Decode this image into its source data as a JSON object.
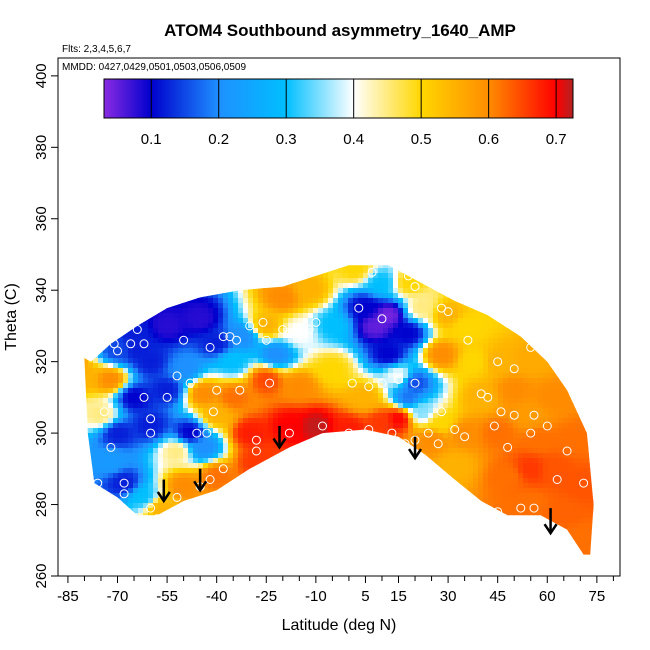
{
  "chart_data": {
    "type": "heatmap",
    "title": "ATOM4 Southbound asymmetry_1640_AMP",
    "annotations": {
      "flights": "Flts: 2,3,4,5,6,7",
      "dates": "MMDD: 0427,0429,0501,0503,0506,0509"
    },
    "xlabel": "Latitude (deg N)",
    "ylabel": "Theta (C)",
    "xlim": [
      -88,
      82
    ],
    "ylim": [
      260,
      405
    ],
    "x_ticks": [
      -85,
      -70,
      -55,
      -40,
      -25,
      -10,
      5,
      15,
      30,
      45,
      60,
      75
    ],
    "x_tick_labels": [
      "-85",
      "-70",
      "-55",
      "-40",
      "-25",
      "-10",
      "5",
      "15",
      "30",
      "45",
      "60",
      "75"
    ],
    "y_ticks": [
      260,
      280,
      300,
      320,
      340,
      360,
      380,
      400
    ],
    "y_tick_labels": [
      "260",
      "280",
      "300",
      "320",
      "340",
      "360",
      "380",
      "400"
    ],
    "colorbar": {
      "range": [
        0.03,
        0.725
      ],
      "ticks": [
        0.1,
        0.2,
        0.3,
        0.4,
        0.5,
        0.6,
        0.7
      ],
      "tick_labels": [
        "0.1",
        "0.2",
        "0.3",
        "0.4",
        "0.5",
        "0.6",
        "0.7"
      ],
      "bounds": [
        0.03,
        0.1,
        0.2,
        0.3,
        0.4,
        0.5,
        0.6,
        0.7,
        0.725
      ],
      "colors": [
        "#8a2be2",
        "#0000cd",
        "#1e90ff",
        "#00bfff",
        "#ffffff",
        "#ffd700",
        "#ff8c00",
        "#ff0000",
        "#b22222"
      ]
    },
    "field_extent": {
      "top": [
        [
          -78,
          320
        ],
        [
          -72,
          325
        ],
        [
          -64,
          330
        ],
        [
          -55,
          335
        ],
        [
          -45,
          338
        ],
        [
          -33,
          340
        ],
        [
          -20,
          341
        ],
        [
          -10,
          344
        ],
        [
          0,
          347
        ],
        [
          12,
          347
        ],
        [
          22,
          342
        ],
        [
          32,
          337
        ],
        [
          42,
          333
        ],
        [
          52,
          327
        ],
        [
          60,
          320
        ],
        [
          66,
          312
        ],
        [
          72,
          300
        ],
        [
          74,
          280
        ],
        [
          73,
          266
        ]
      ],
      "bottom": [
        [
          -80,
          321
        ],
        [
          -79,
          300
        ],
        [
          -77,
          286
        ],
        [
          -70,
          282
        ],
        [
          -64,
          277
        ],
        [
          -58,
          277
        ],
        [
          -50,
          281
        ],
        [
          -40,
          284
        ],
        [
          -30,
          290
        ],
        [
          -18,
          296
        ],
        [
          -8,
          300
        ],
        [
          5,
          301
        ],
        [
          15,
          299
        ],
        [
          23,
          294
        ],
        [
          32,
          287
        ],
        [
          40,
          281
        ],
        [
          48,
          277
        ],
        [
          58,
          277
        ],
        [
          66,
          273
        ],
        [
          71,
          266
        ]
      ]
    },
    "samples": [
      {
        "x": -85,
        "y": 320,
        "v": 0.62
      },
      {
        "x": -80,
        "y": 316,
        "v": 0.55
      },
      {
        "x": -72,
        "y": 315,
        "v": 0.6
      },
      {
        "x": -75,
        "y": 305,
        "v": 0.45
      },
      {
        "x": -70,
        "y": 323,
        "v": 0.15
      },
      {
        "x": -65,
        "y": 328,
        "v": 0.12
      },
      {
        "x": -64,
        "y": 323,
        "v": 0.12
      },
      {
        "x": -60,
        "y": 320,
        "v": 0.12
      },
      {
        "x": -55,
        "y": 330,
        "v": 0.08
      },
      {
        "x": -45,
        "y": 332,
        "v": 0.08
      },
      {
        "x": -40,
        "y": 325,
        "v": 0.12
      },
      {
        "x": -32,
        "y": 327,
        "v": 0.2
      },
      {
        "x": -25,
        "y": 330,
        "v": 0.55
      },
      {
        "x": -20,
        "y": 338,
        "v": 0.6
      },
      {
        "x": -12,
        "y": 340,
        "v": 0.55
      },
      {
        "x": -15,
        "y": 328,
        "v": 0.4
      },
      {
        "x": -22,
        "y": 322,
        "v": 0.2
      },
      {
        "x": -35,
        "y": 320,
        "v": 0.3
      },
      {
        "x": -50,
        "y": 318,
        "v": 0.2
      },
      {
        "x": -55,
        "y": 312,
        "v": 0.12
      },
      {
        "x": -65,
        "y": 310,
        "v": 0.1
      },
      {
        "x": -60,
        "y": 302,
        "v": 0.12
      },
      {
        "x": -70,
        "y": 300,
        "v": 0.12
      },
      {
        "x": -72,
        "y": 292,
        "v": 0.22
      },
      {
        "x": -68,
        "y": 286,
        "v": 0.12
      },
      {
        "x": -62,
        "y": 282,
        "v": 0.3
      },
      {
        "x": -57,
        "y": 279,
        "v": 0.55
      },
      {
        "x": -50,
        "y": 285,
        "v": 0.6
      },
      {
        "x": -52,
        "y": 295,
        "v": 0.45
      },
      {
        "x": -48,
        "y": 300,
        "v": 0.1
      },
      {
        "x": -44,
        "y": 296,
        "v": 0.2
      },
      {
        "x": -40,
        "y": 305,
        "v": 0.55
      },
      {
        "x": -44,
        "y": 311,
        "v": 0.6
      },
      {
        "x": -35,
        "y": 310,
        "v": 0.62
      },
      {
        "x": -25,
        "y": 315,
        "v": 0.65
      },
      {
        "x": -15,
        "y": 313,
        "v": 0.6
      },
      {
        "x": -30,
        "y": 300,
        "v": 0.68
      },
      {
        "x": -18,
        "y": 302,
        "v": 0.7
      },
      {
        "x": -28,
        "y": 292,
        "v": 0.66
      },
      {
        "x": -40,
        "y": 288,
        "v": 0.62
      },
      {
        "x": -10,
        "y": 302,
        "v": 0.72
      },
      {
        "x": 0,
        "y": 301,
        "v": 0.68
      },
      {
        "x": 10,
        "y": 303,
        "v": 0.66
      },
      {
        "x": 5,
        "y": 310,
        "v": 0.55
      },
      {
        "x": -5,
        "y": 318,
        "v": 0.5
      },
      {
        "x": -5,
        "y": 330,
        "v": 0.3
      },
      {
        "x": 5,
        "y": 335,
        "v": 0.1
      },
      {
        "x": 8,
        "y": 330,
        "v": 0.05
      },
      {
        "x": 12,
        "y": 333,
        "v": 0.04
      },
      {
        "x": 10,
        "y": 342,
        "v": 0.3
      },
      {
        "x": 2,
        "y": 346,
        "v": 0.5
      },
      {
        "x": 18,
        "y": 342,
        "v": 0.5
      },
      {
        "x": 22,
        "y": 335,
        "v": 0.45
      },
      {
        "x": 18,
        "y": 328,
        "v": 0.1
      },
      {
        "x": 12,
        "y": 322,
        "v": 0.1
      },
      {
        "x": 15,
        "y": 316,
        "v": 0.4
      },
      {
        "x": 18,
        "y": 310,
        "v": 0.18
      },
      {
        "x": 20,
        "y": 314,
        "v": 0.15
      },
      {
        "x": 22,
        "y": 306,
        "v": 0.35
      },
      {
        "x": 15,
        "y": 304,
        "v": 0.7
      },
      {
        "x": 25,
        "y": 298,
        "v": 0.6
      },
      {
        "x": 28,
        "y": 303,
        "v": 0.5
      },
      {
        "x": 28,
        "y": 322,
        "v": 0.6
      },
      {
        "x": 30,
        "y": 333,
        "v": 0.55
      },
      {
        "x": 35,
        "y": 330,
        "v": 0.5
      },
      {
        "x": 38,
        "y": 320,
        "v": 0.5
      },
      {
        "x": 40,
        "y": 310,
        "v": 0.55
      },
      {
        "x": 35,
        "y": 300,
        "v": 0.6
      },
      {
        "x": 32,
        "y": 291,
        "v": 0.55
      },
      {
        "x": 45,
        "y": 320,
        "v": 0.55
      },
      {
        "x": 50,
        "y": 312,
        "v": 0.6
      },
      {
        "x": 45,
        "y": 300,
        "v": 0.62
      },
      {
        "x": 48,
        "y": 288,
        "v": 0.62
      },
      {
        "x": 55,
        "y": 305,
        "v": 0.58
      },
      {
        "x": 58,
        "y": 298,
        "v": 0.62
      },
      {
        "x": 55,
        "y": 290,
        "v": 0.66
      },
      {
        "x": 55,
        "y": 280,
        "v": 0.62
      },
      {
        "x": 62,
        "y": 290,
        "v": 0.64
      },
      {
        "x": 62,
        "y": 310,
        "v": 0.6
      },
      {
        "x": 68,
        "y": 298,
        "v": 0.62
      },
      {
        "x": 70,
        "y": 285,
        "v": 0.64
      },
      {
        "x": 70,
        "y": 270,
        "v": 0.62
      },
      {
        "x": 65,
        "y": 278,
        "v": 0.63
      },
      {
        "x": 55,
        "y": 320,
        "v": 0.56
      }
    ],
    "observation_points": [
      [
        -84,
        321
      ],
      [
        -74,
        306
      ],
      [
        -71,
        325
      ],
      [
        -70,
        323
      ],
      [
        -64,
        329
      ],
      [
        -66,
        325
      ],
      [
        -62,
        325
      ],
      [
        -55,
        337
      ],
      [
        -50,
        326
      ],
      [
        -42,
        324
      ],
      [
        -38,
        327
      ],
      [
        -30,
        330
      ],
      [
        -34,
        326
      ],
      [
        -26,
        331
      ],
      [
        -25,
        326
      ],
      [
        -20,
        329
      ],
      [
        -12,
        329
      ],
      [
        -10,
        331
      ],
      [
        -36,
        327
      ],
      [
        -48,
        314
      ],
      [
        -52,
        316
      ],
      [
        -62,
        310
      ],
      [
        -60,
        300
      ],
      [
        -72,
        296
      ],
      [
        -76,
        286
      ],
      [
        -68,
        286
      ],
      [
        -68,
        283
      ],
      [
        -60,
        279
      ],
      [
        -58,
        276
      ],
      [
        -52,
        282
      ],
      [
        -45,
        285
      ],
      [
        -42,
        287
      ],
      [
        -38,
        290
      ],
      [
        -28,
        295
      ],
      [
        -28,
        298
      ],
      [
        -18,
        300
      ],
      [
        -8,
        302
      ],
      [
        0,
        300
      ],
      [
        6,
        301
      ],
      [
        13,
        300
      ],
      [
        17,
        297
      ],
      [
        20,
        298
      ],
      [
        24,
        300
      ],
      [
        28,
        306
      ],
      [
        32,
        301
      ],
      [
        27,
        297
      ],
      [
        35,
        299
      ],
      [
        44,
        302
      ],
      [
        50,
        305
      ],
      [
        56,
        305
      ],
      [
        55,
        300
      ],
      [
        60,
        302
      ],
      [
        66,
        295
      ],
      [
        71,
        286
      ],
      [
        63,
        287
      ],
      [
        48,
        296
      ],
      [
        40,
        311
      ],
      [
        42,
        310
      ],
      [
        46,
        306
      ],
      [
        45,
        320
      ],
      [
        50,
        318
      ],
      [
        55,
        324
      ],
      [
        36,
        326
      ],
      [
        28,
        335
      ],
      [
        30,
        334
      ],
      [
        20,
        341
      ],
      [
        18,
        344
      ],
      [
        7,
        345
      ],
      [
        3,
        335
      ],
      [
        10,
        332
      ],
      [
        1,
        314
      ],
      [
        6,
        313
      ],
      [
        10,
        314
      ],
      [
        15,
        315
      ],
      [
        20,
        314
      ],
      [
        -24,
        314
      ],
      [
        -40,
        312
      ],
      [
        -33,
        312
      ],
      [
        -43,
        300
      ],
      [
        -46,
        300
      ],
      [
        -41,
        306
      ],
      [
        -55,
        310
      ],
      [
        -60,
        304
      ],
      [
        -75,
        281
      ],
      [
        -78,
        284
      ],
      [
        52,
        279
      ],
      [
        56,
        279
      ],
      [
        45,
        278
      ]
    ],
    "arrows": [
      {
        "x": -56,
        "y_top": 287,
        "y_tip": 281
      },
      {
        "x": -45,
        "y_top": 290,
        "y_tip": 284
      },
      {
        "x": -21,
        "y_top": 302,
        "y_tip": 296
      },
      {
        "x": 20,
        "y_top": 299,
        "y_tip": 293
      },
      {
        "x": 61,
        "y_top": 279,
        "y_tip": 272
      }
    ]
  }
}
